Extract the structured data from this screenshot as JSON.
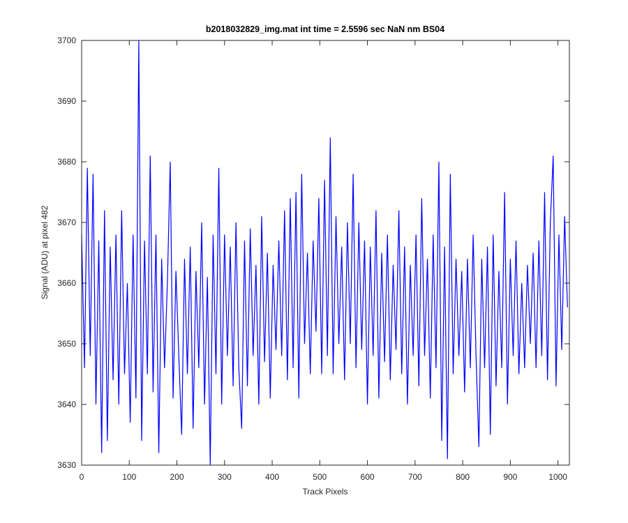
{
  "chart_data": {
    "type": "line",
    "title": "b2018032829_img.mat int time = 2.5596 sec  NaN nm BS04",
    "x_label": "Track Pixels",
    "y_label": "Signal (ADU) at pixel 482",
    "x": [
      0,
      6,
      12,
      18,
      24,
      30,
      36,
      42,
      48,
      54,
      60,
      66,
      72,
      78,
      84,
      90,
      96,
      102,
      108,
      114,
      120,
      126,
      132,
      138,
      144,
      150,
      156,
      162,
      168,
      174,
      180,
      186,
      192,
      198,
      204,
      210,
      216,
      222,
      228,
      234,
      240,
      246,
      252,
      258,
      264,
      270,
      276,
      282,
      288,
      294,
      300,
      306,
      312,
      318,
      324,
      330,
      336,
      342,
      348,
      354,
      360,
      366,
      372,
      378,
      384,
      390,
      396,
      402,
      408,
      414,
      420,
      426,
      432,
      438,
      444,
      450,
      456,
      462,
      468,
      474,
      480,
      486,
      492,
      498,
      504,
      510,
      516,
      522,
      528,
      534,
      540,
      546,
      552,
      558,
      564,
      570,
      576,
      582,
      588,
      594,
      600,
      606,
      612,
      618,
      624,
      630,
      636,
      642,
      648,
      654,
      660,
      666,
      672,
      678,
      684,
      690,
      696,
      702,
      708,
      714,
      720,
      726,
      732,
      738,
      744,
      750,
      756,
      762,
      768,
      774,
      780,
      786,
      792,
      798,
      804,
      810,
      816,
      822,
      828,
      834,
      840,
      846,
      852,
      858,
      864,
      870,
      876,
      882,
      888,
      894,
      900,
      906,
      912,
      918,
      924,
      930,
      936,
      942,
      948,
      954,
      960,
      966,
      972,
      978,
      984,
      990,
      996,
      1002,
      1008,
      1014,
      1020
    ],
    "series": [
      {
        "name": "Signal",
        "color": "#0000ff",
        "values": [
          3668,
          3646,
          3679,
          3648,
          3678,
          3640,
          3667,
          3632,
          3672,
          3634,
          3666,
          3644,
          3668,
          3640,
          3672,
          3645,
          3660,
          3637,
          3668,
          3641,
          3700,
          3634,
          3667,
          3645,
          3681,
          3642,
          3668,
          3632,
          3664,
          3646,
          3660,
          3680,
          3641,
          3662,
          3648,
          3635,
          3664,
          3645,
          3666,
          3636,
          3662,
          3646,
          3670,
          3640,
          3661,
          3630,
          3668,
          3645,
          3679,
          3640,
          3668,
          3648,
          3666,
          3643,
          3670,
          3646,
          3636,
          3667,
          3643,
          3669,
          3648,
          3663,
          3640,
          3671,
          3647,
          3665,
          3641,
          3663,
          3649,
          3667,
          3648,
          3672,
          3644,
          3674,
          3646,
          3675,
          3641,
          3678,
          3650,
          3665,
          3645,
          3667,
          3652,
          3674,
          3645,
          3677,
          3648,
          3684,
          3645,
          3671,
          3650,
          3666,
          3644,
          3670,
          3650,
          3678,
          3646,
          3670,
          3649,
          3667,
          3640,
          3666,
          3648,
          3672,
          3641,
          3665,
          3647,
          3668,
          3644,
          3663,
          3649,
          3672,
          3645,
          3666,
          3640,
          3663,
          3648,
          3668,
          3643,
          3674,
          3648,
          3664,
          3641,
          3668,
          3646,
          3680,
          3634,
          3666,
          3631,
          3678,
          3645,
          3664,
          3648,
          3662,
          3642,
          3664,
          3646,
          3668,
          3648,
          3633,
          3664,
          3646,
          3666,
          3635,
          3668,
          3643,
          3662,
          3646,
          3675,
          3640,
          3664,
          3648,
          3667,
          3645,
          3660,
          3646,
          3663,
          3650,
          3665,
          3646,
          3667,
          3648,
          3675,
          3644,
          3670,
          3681,
          3643,
          3668,
          3649,
          3671,
          3656
        ]
      }
    ],
    "xlim": [
      0,
      1024
    ],
    "xticks": [
      0,
      100,
      200,
      300,
      400,
      500,
      600,
      700,
      800,
      900,
      1000
    ],
    "ylim": [
      3630,
      3700
    ],
    "yticks": [
      3630,
      3640,
      3650,
      3660,
      3670,
      3680,
      3690,
      3700
    ],
    "grid": false
  }
}
